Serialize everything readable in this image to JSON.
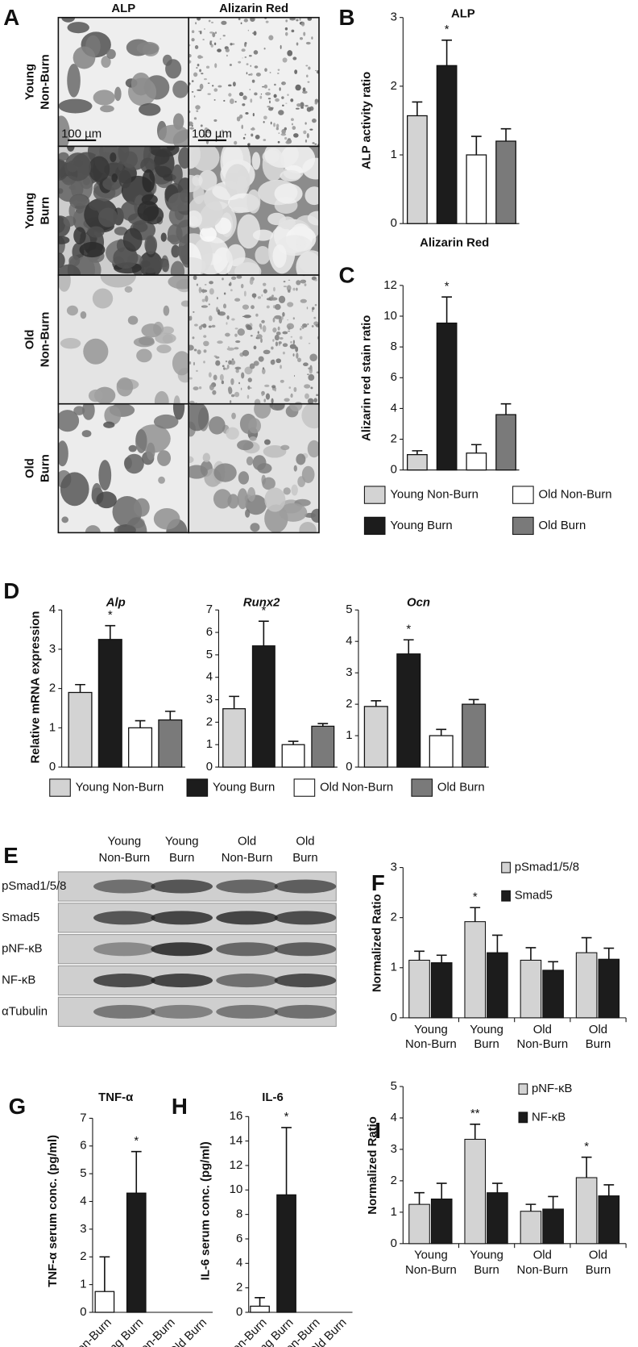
{
  "micrograph": {
    "panel": "A",
    "columns": [
      "ALP",
      "Alizarin Red"
    ],
    "rows": [
      [
        "Young",
        "Non-Burn"
      ],
      [
        "Young",
        "Burn"
      ],
      [
        "Old",
        "Non-Burn"
      ],
      [
        "Old",
        "Burn"
      ]
    ],
    "scale_bar": "100 µm"
  },
  "blot": {
    "panel": "E",
    "columns": [
      [
        "Young",
        "Non-Burn"
      ],
      [
        "Young",
        "Burn"
      ],
      [
        "Old",
        "Non-Burn"
      ],
      [
        "Old",
        "Burn"
      ]
    ],
    "rows": [
      "pSmad1/5/8",
      "Smad5",
      "pNF-κB",
      "NF-κB",
      "αTubulin"
    ]
  },
  "chart_data": [
    {
      "type": "bar",
      "panel": "B",
      "title": "ALP",
      "ylabel": "ALP activity ratio",
      "values": [
        1.57,
        2.3,
        1.0,
        1.2
      ],
      "errors": [
        0.2,
        0.37,
        0.27,
        0.18
      ],
      "colors": [
        "#d3d3d3",
        "#1c1c1c",
        "#ffffff",
        "#7a7a7a"
      ],
      "ylim": [
        0,
        3
      ],
      "yticks": [
        0,
        1,
        2,
        3
      ],
      "annotations": [
        {
          "text": "*",
          "index": 1
        }
      ]
    },
    {
      "type": "bar",
      "panel": "C",
      "title": "Alizarin Red",
      "ylabel": "Alizarin red stain ratio",
      "categories": [
        "Young Non-Burn",
        "Young Burn",
        "Old Non-Burn",
        "Old Burn"
      ],
      "values": [
        1.0,
        9.55,
        1.1,
        3.6
      ],
      "errors": [
        0.25,
        1.7,
        0.55,
        0.7
      ],
      "colors": [
        "#d3d3d3",
        "#1c1c1c",
        "#ffffff",
        "#7a7a7a"
      ],
      "ylim": [
        0,
        12
      ],
      "yticks": [
        0,
        2,
        4,
        6,
        8,
        10,
        12
      ],
      "legend": "bottom",
      "annotations": [
        {
          "text": "*",
          "index": 1
        }
      ]
    },
    {
      "type": "bar",
      "panel": "D",
      "title": "Alp",
      "ylabel": "Relative mRNA expression",
      "categories": [
        "Young Non-Burn",
        "Young Burn",
        "Old Non-Burn",
        "Old Burn"
      ],
      "values": [
        1.9,
        3.25,
        1.0,
        1.2
      ],
      "errors": [
        0.2,
        0.35,
        0.18,
        0.22
      ],
      "colors": [
        "#d3d3d3",
        "#1c1c1c",
        "#ffffff",
        "#7a7a7a"
      ],
      "ylim": [
        0,
        4
      ],
      "yticks": [
        0,
        1,
        2,
        3,
        4
      ],
      "legend": "bottom",
      "annotations": [
        {
          "text": "*",
          "index": 1
        }
      ]
    },
    {
      "type": "bar",
      "title": "Runx2",
      "values": [
        2.6,
        5.4,
        1.0,
        1.82
      ],
      "errors": [
        0.55,
        1.1,
        0.15,
        0.12
      ],
      "colors": [
        "#d3d3d3",
        "#1c1c1c",
        "#ffffff",
        "#7a7a7a"
      ],
      "ylim": [
        0,
        7
      ],
      "yticks": [
        0,
        1,
        2,
        3,
        4,
        5,
        6,
        7
      ],
      "annotations": [
        {
          "text": "*",
          "index": 1
        }
      ]
    },
    {
      "type": "bar",
      "title": "Ocn",
      "values": [
        1.93,
        3.6,
        1.0,
        2.0
      ],
      "errors": [
        0.18,
        0.45,
        0.2,
        0.15
      ],
      "colors": [
        "#d3d3d3",
        "#1c1c1c",
        "#ffffff",
        "#7a7a7a"
      ],
      "ylim": [
        0,
        5
      ],
      "yticks": [
        0,
        1,
        2,
        3,
        4,
        5
      ],
      "annotations": [
        {
          "text": "*",
          "index": 1
        }
      ]
    },
    {
      "type": "grouped_bar",
      "panel": "F",
      "ylabel": "Normalized Ratio",
      "categories": [
        [
          "Young",
          "Non-Burn"
        ],
        [
          "Young",
          "Burn"
        ],
        [
          "Old",
          "Non-Burn"
        ],
        [
          "Old",
          "Burn"
        ]
      ],
      "series": [
        {
          "name": "pSmad1/5/8",
          "color": "#d3d3d3",
          "values": [
            1.15,
            1.92,
            1.15,
            1.3
          ],
          "errors": [
            0.18,
            0.28,
            0.25,
            0.3
          ]
        },
        {
          "name": "Smad5",
          "color": "#1c1c1c",
          "values": [
            1.1,
            1.3,
            0.95,
            1.17
          ],
          "errors": [
            0.15,
            0.35,
            0.17,
            0.22
          ]
        }
      ],
      "ylim": [
        0,
        3
      ],
      "yticks": [
        0,
        1,
        2,
        3
      ],
      "legend": "upper right",
      "annotations": [
        {
          "text": "*",
          "series": 0,
          "index": 1
        }
      ]
    },
    {
      "type": "bar",
      "panel": "G",
      "title": "TNF-α",
      "ylabel": "TNF-α serum conc. (pg/ml)",
      "categories": [
        "Young Non-Burn",
        "Young Burn",
        "Old Non-Burn",
        "Old Burn"
      ],
      "values": [
        0.75,
        4.3,
        null,
        null
      ],
      "errors": [
        1.25,
        1.5,
        null,
        null
      ],
      "colors": [
        "#ffffff",
        "#1c1c1c",
        "#ffffff",
        "#7a7a7a"
      ],
      "ylim": [
        0,
        7
      ],
      "yticks": [
        0,
        1,
        2,
        3,
        4,
        5,
        6,
        7
      ],
      "annotations": [
        {
          "text": "*",
          "index": 1
        }
      ]
    },
    {
      "type": "bar",
      "panel": "H",
      "title": "IL-6",
      "ylabel": "IL-6 serum conc. (pg/ml)",
      "categories": [
        "Young Non-Burn",
        "Young Burn",
        "Old Non-Burn",
        "Old Burn"
      ],
      "values": [
        0.5,
        9.6,
        null,
        null
      ],
      "errors": [
        0.7,
        5.5,
        null,
        null
      ],
      "colors": [
        "#ffffff",
        "#1c1c1c",
        "#ffffff",
        "#7a7a7a"
      ],
      "ylim": [
        0,
        16
      ],
      "yticks": [
        0,
        2,
        4,
        6,
        8,
        10,
        12,
        14,
        16
      ],
      "annotations": [
        {
          "text": "*",
          "index": 1
        }
      ]
    },
    {
      "type": "grouped_bar",
      "panel": "I",
      "ylabel": "Normalized Ratio",
      "categories": [
        [
          "Young",
          "Non-Burn"
        ],
        [
          "Young",
          "Burn"
        ],
        [
          "Old",
          "Non-Burn"
        ],
        [
          "Old",
          "Burn"
        ]
      ],
      "series": [
        {
          "name": "pNF-κB",
          "color": "#d3d3d3",
          "values": [
            1.25,
            3.32,
            1.03,
            2.1
          ],
          "errors": [
            0.37,
            0.48,
            0.22,
            0.65
          ]
        },
        {
          "name": "NF-κB",
          "color": "#1c1c1c",
          "values": [
            1.42,
            1.62,
            1.1,
            1.52
          ],
          "errors": [
            0.5,
            0.3,
            0.4,
            0.35
          ]
        }
      ],
      "ylim": [
        0,
        5
      ],
      "yticks": [
        0,
        1,
        2,
        3,
        4,
        5
      ],
      "legend": "upper right",
      "annotations": [
        {
          "text": "**",
          "series": 0,
          "index": 1
        },
        {
          "text": "*",
          "series": 0,
          "index": 3
        }
      ]
    }
  ]
}
